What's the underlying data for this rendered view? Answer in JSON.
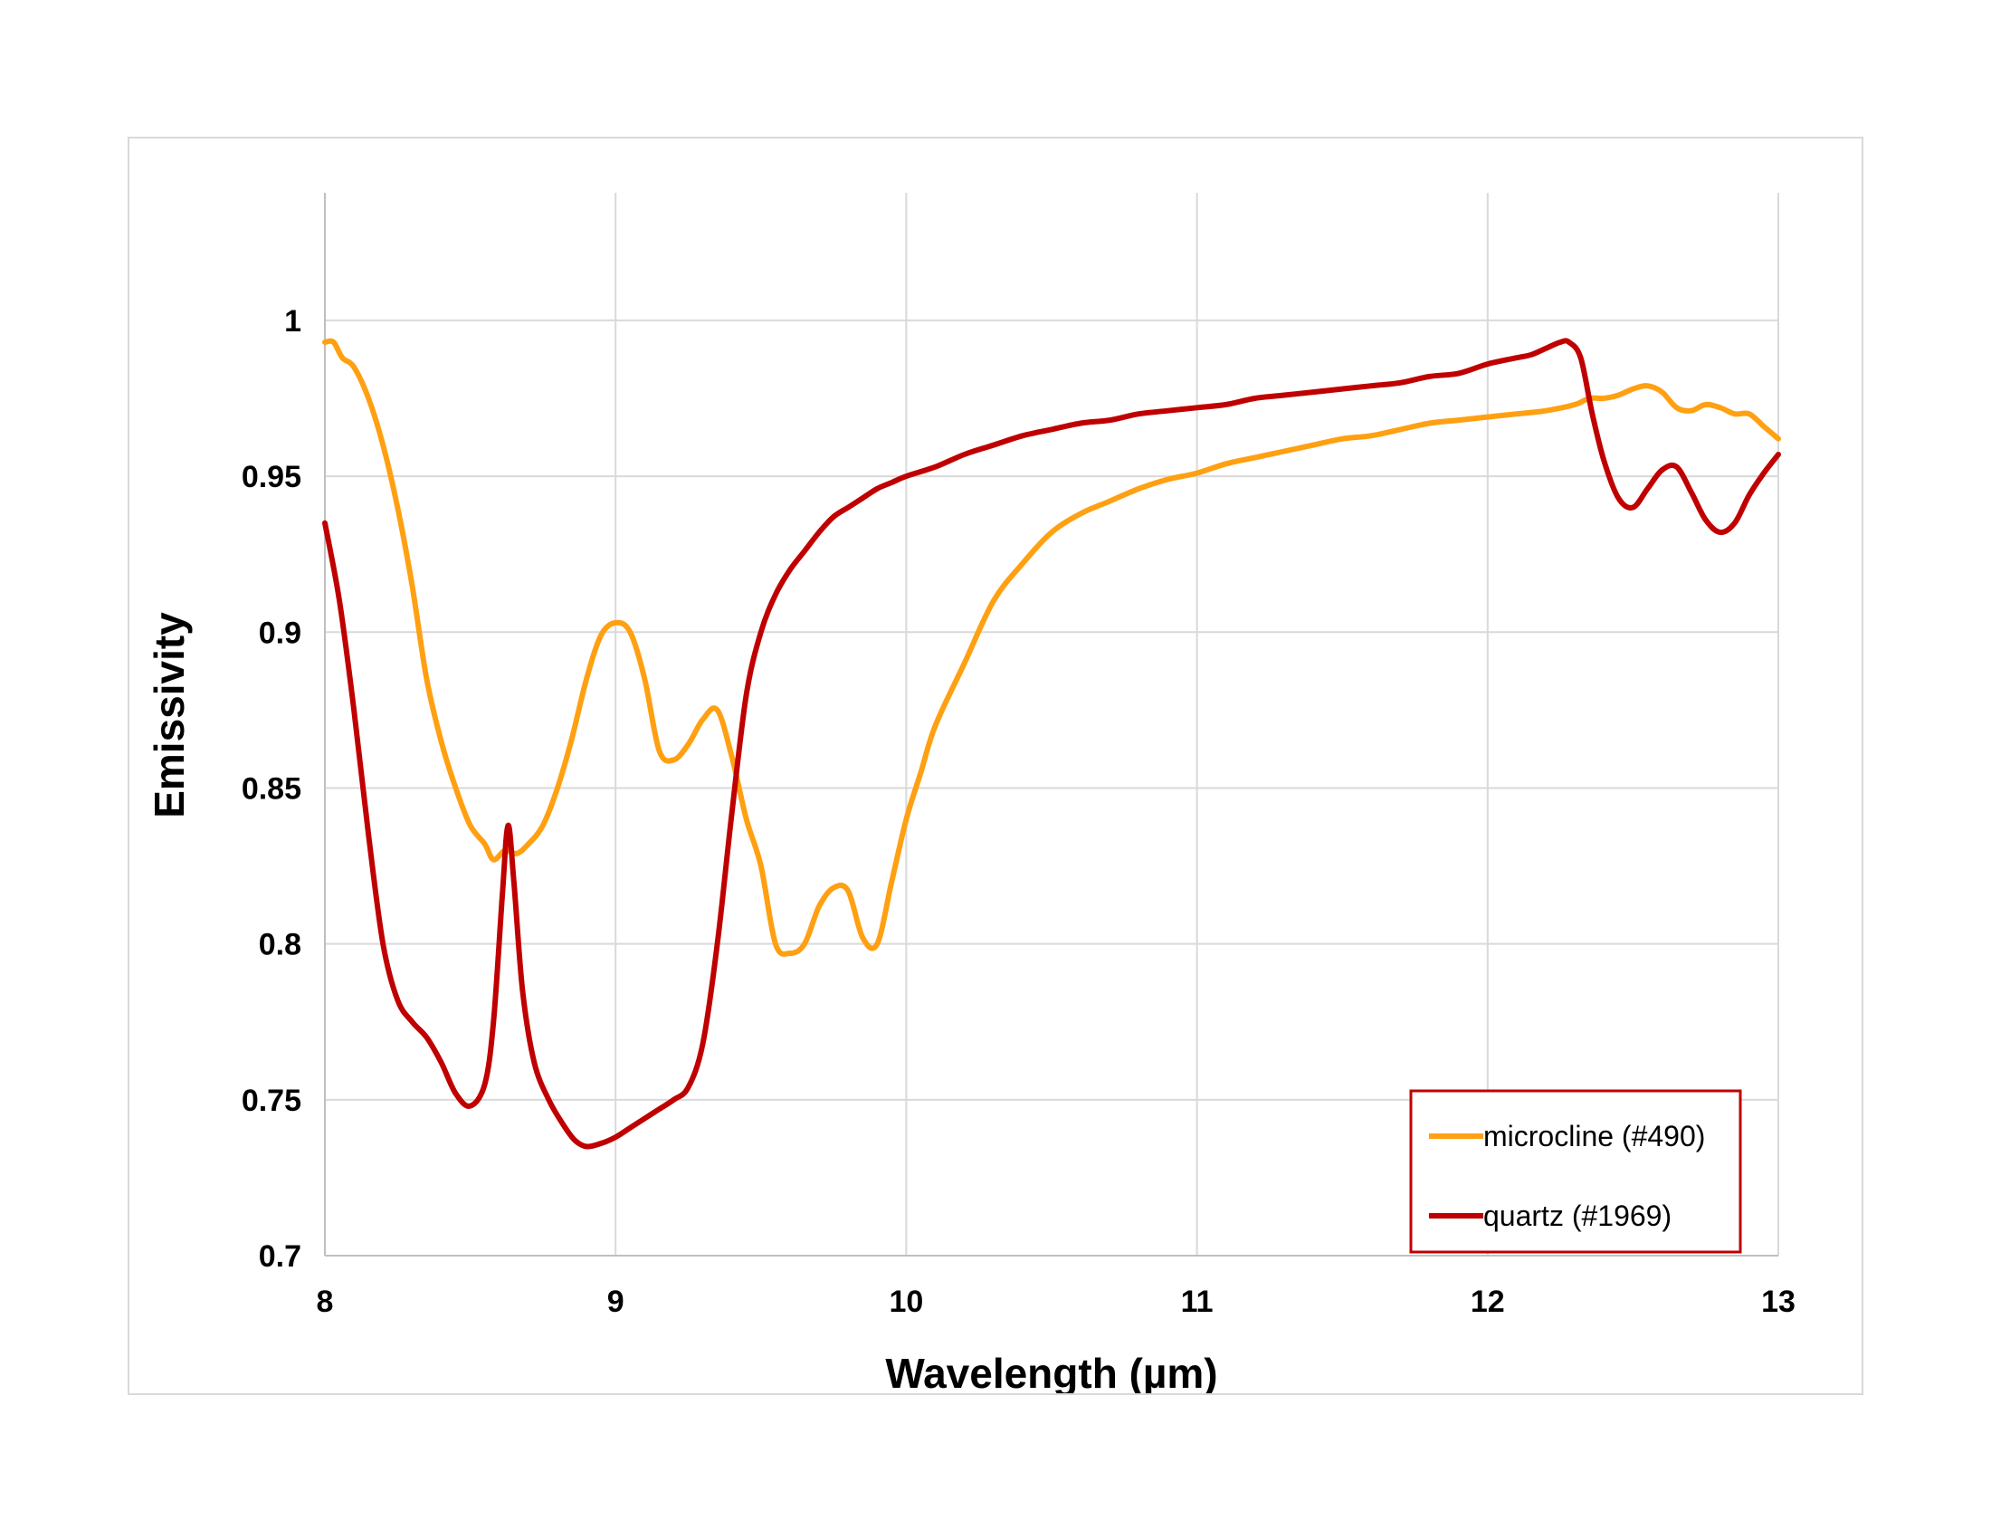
{
  "chart_data": {
    "type": "line",
    "title": "",
    "xlabel": "Wavelength (µm)",
    "ylabel": "Emissivity",
    "xlim": [
      8,
      13
    ],
    "ylim": [
      0.7,
      1.02
    ],
    "xticks": [
      8,
      9,
      10,
      11,
      12,
      13
    ],
    "xtick_labels": [
      "8",
      "9",
      "10",
      "11",
      "12",
      "13"
    ],
    "yticks": [
      0.7,
      0.75,
      0.8,
      0.85,
      0.9,
      0.95,
      1.0
    ],
    "ytick_labels": [
      "0.7",
      "0.75",
      "0.8",
      "0.85",
      "0.9",
      "0.95",
      "1"
    ],
    "grid": true,
    "legend_position": "bottom-right",
    "legend_border_color": "#c00000",
    "series": [
      {
        "name": "microcline (#490)",
        "color": "#ffa012",
        "points": [
          [
            8.0,
            0.993
          ],
          [
            8.03,
            0.993
          ],
          [
            8.06,
            0.988
          ],
          [
            8.1,
            0.985
          ],
          [
            8.15,
            0.975
          ],
          [
            8.2,
            0.96
          ],
          [
            8.25,
            0.94
          ],
          [
            8.3,
            0.915
          ],
          [
            8.35,
            0.885
          ],
          [
            8.4,
            0.865
          ],
          [
            8.45,
            0.85
          ],
          [
            8.5,
            0.838
          ],
          [
            8.55,
            0.832
          ],
          [
            8.58,
            0.827
          ],
          [
            8.62,
            0.83
          ],
          [
            8.66,
            0.829
          ],
          [
            8.7,
            0.832
          ],
          [
            8.75,
            0.838
          ],
          [
            8.8,
            0.85
          ],
          [
            8.85,
            0.866
          ],
          [
            8.9,
            0.885
          ],
          [
            8.95,
            0.899
          ],
          [
            9.0,
            0.903
          ],
          [
            9.05,
            0.9
          ],
          [
            9.1,
            0.885
          ],
          [
            9.15,
            0.862
          ],
          [
            9.2,
            0.859
          ],
          [
            9.25,
            0.864
          ],
          [
            9.3,
            0.872
          ],
          [
            9.35,
            0.875
          ],
          [
            9.4,
            0.86
          ],
          [
            9.45,
            0.84
          ],
          [
            9.5,
            0.825
          ],
          [
            9.55,
            0.8
          ],
          [
            9.6,
            0.797
          ],
          [
            9.65,
            0.8
          ],
          [
            9.7,
            0.812
          ],
          [
            9.75,
            0.818
          ],
          [
            9.8,
            0.817
          ],
          [
            9.85,
            0.802
          ],
          [
            9.9,
            0.8
          ],
          [
            9.95,
            0.82
          ],
          [
            10.0,
            0.84
          ],
          [
            10.05,
            0.855
          ],
          [
            10.1,
            0.87
          ],
          [
            10.2,
            0.89
          ],
          [
            10.3,
            0.91
          ],
          [
            10.4,
            0.922
          ],
          [
            10.5,
            0.932
          ],
          [
            10.6,
            0.938
          ],
          [
            10.7,
            0.942
          ],
          [
            10.8,
            0.946
          ],
          [
            10.9,
            0.949
          ],
          [
            11.0,
            0.951
          ],
          [
            11.1,
            0.954
          ],
          [
            11.2,
            0.956
          ],
          [
            11.3,
            0.958
          ],
          [
            11.4,
            0.96
          ],
          [
            11.5,
            0.962
          ],
          [
            11.6,
            0.963
          ],
          [
            11.7,
            0.965
          ],
          [
            11.8,
            0.967
          ],
          [
            11.9,
            0.968
          ],
          [
            12.0,
            0.969
          ],
          [
            12.1,
            0.97
          ],
          [
            12.2,
            0.971
          ],
          [
            12.3,
            0.973
          ],
          [
            12.35,
            0.975
          ],
          [
            12.4,
            0.975
          ],
          [
            12.45,
            0.976
          ],
          [
            12.5,
            0.978
          ],
          [
            12.55,
            0.979
          ],
          [
            12.6,
            0.977
          ],
          [
            12.65,
            0.972
          ],
          [
            12.7,
            0.971
          ],
          [
            12.75,
            0.973
          ],
          [
            12.8,
            0.972
          ],
          [
            12.85,
            0.97
          ],
          [
            12.9,
            0.97
          ],
          [
            12.95,
            0.966
          ],
          [
            13.0,
            0.962
          ]
        ]
      },
      {
        "name": "quartz (#1969)",
        "color": "#c00000",
        "points": [
          [
            8.0,
            0.935
          ],
          [
            8.05,
            0.91
          ],
          [
            8.1,
            0.875
          ],
          [
            8.15,
            0.835
          ],
          [
            8.2,
            0.8
          ],
          [
            8.25,
            0.782
          ],
          [
            8.3,
            0.775
          ],
          [
            8.35,
            0.77
          ],
          [
            8.4,
            0.762
          ],
          [
            8.45,
            0.752
          ],
          [
            8.5,
            0.748
          ],
          [
            8.55,
            0.755
          ],
          [
            8.58,
            0.775
          ],
          [
            8.61,
            0.815
          ],
          [
            8.63,
            0.838
          ],
          [
            8.65,
            0.82
          ],
          [
            8.68,
            0.785
          ],
          [
            8.72,
            0.762
          ],
          [
            8.77,
            0.75
          ],
          [
            8.82,
            0.742
          ],
          [
            8.86,
            0.737
          ],
          [
            8.9,
            0.735
          ],
          [
            8.95,
            0.736
          ],
          [
            9.0,
            0.738
          ],
          [
            9.05,
            0.741
          ],
          [
            9.1,
            0.744
          ],
          [
            9.15,
            0.747
          ],
          [
            9.2,
            0.75
          ],
          [
            9.25,
            0.754
          ],
          [
            9.3,
            0.768
          ],
          [
            9.35,
            0.8
          ],
          [
            9.4,
            0.842
          ],
          [
            9.45,
            0.88
          ],
          [
            9.5,
            0.9
          ],
          [
            9.55,
            0.912
          ],
          [
            9.6,
            0.92
          ],
          [
            9.65,
            0.926
          ],
          [
            9.7,
            0.932
          ],
          [
            9.75,
            0.937
          ],
          [
            9.8,
            0.94
          ],
          [
            9.85,
            0.943
          ],
          [
            9.9,
            0.946
          ],
          [
            9.95,
            0.948
          ],
          [
            10.0,
            0.95
          ],
          [
            10.1,
            0.953
          ],
          [
            10.2,
            0.957
          ],
          [
            10.3,
            0.96
          ],
          [
            10.4,
            0.963
          ],
          [
            10.5,
            0.965
          ],
          [
            10.6,
            0.967
          ],
          [
            10.7,
            0.968
          ],
          [
            10.8,
            0.97
          ],
          [
            10.9,
            0.971
          ],
          [
            11.0,
            0.972
          ],
          [
            11.1,
            0.973
          ],
          [
            11.2,
            0.975
          ],
          [
            11.3,
            0.976
          ],
          [
            11.4,
            0.977
          ],
          [
            11.5,
            0.978
          ],
          [
            11.6,
            0.979
          ],
          [
            11.7,
            0.98
          ],
          [
            11.8,
            0.982
          ],
          [
            11.9,
            0.983
          ],
          [
            12.0,
            0.986
          ],
          [
            12.1,
            0.988
          ],
          [
            12.15,
            0.989
          ],
          [
            12.2,
            0.991
          ],
          [
            12.25,
            0.993
          ],
          [
            12.28,
            0.993
          ],
          [
            12.32,
            0.988
          ],
          [
            12.36,
            0.97
          ],
          [
            12.4,
            0.955
          ],
          [
            12.45,
            0.943
          ],
          [
            12.5,
            0.94
          ],
          [
            12.55,
            0.946
          ],
          [
            12.6,
            0.952
          ],
          [
            12.65,
            0.953
          ],
          [
            12.7,
            0.945
          ],
          [
            12.75,
            0.936
          ],
          [
            12.8,
            0.932
          ],
          [
            12.85,
            0.935
          ],
          [
            12.9,
            0.944
          ],
          [
            12.95,
            0.951
          ],
          [
            13.0,
            0.957
          ]
        ]
      }
    ]
  }
}
